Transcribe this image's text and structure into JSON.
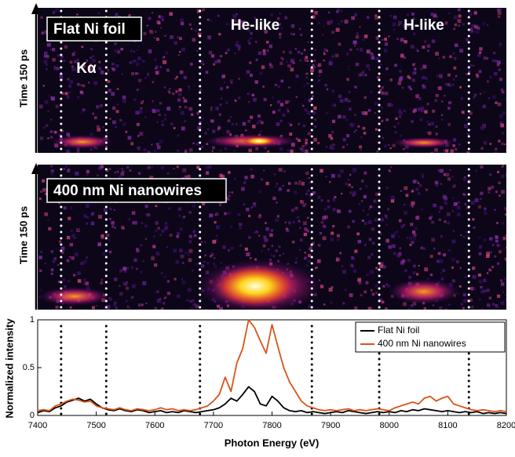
{
  "panels": [
    {
      "label": "Flat Ni foil",
      "y_label": "Time 150 ps",
      "annotations": [
        "Kα",
        "He-like",
        "H-like"
      ]
    },
    {
      "label": "400 nm Ni nanowires",
      "y_label": "Time 150 ps"
    }
  ],
  "chart_data": {
    "type": "line",
    "xlabel": "Photon Energy (eV)",
    "ylabel": "Normalized intensity",
    "x": [
      7400,
      7410,
      7420,
      7430,
      7440,
      7450,
      7460,
      7470,
      7480,
      7490,
      7500,
      7510,
      7520,
      7530,
      7540,
      7550,
      7560,
      7570,
      7580,
      7590,
      7600,
      7610,
      7620,
      7630,
      7640,
      7650,
      7660,
      7670,
      7680,
      7690,
      7700,
      7710,
      7720,
      7730,
      7740,
      7750,
      7760,
      7770,
      7780,
      7790,
      7800,
      7810,
      7820,
      7830,
      7840,
      7850,
      7860,
      7870,
      7880,
      7890,
      7900,
      7910,
      7920,
      7930,
      7940,
      7950,
      7960,
      7970,
      7980,
      7990,
      8000,
      8010,
      8020,
      8030,
      8040,
      8050,
      8060,
      8070,
      8080,
      8090,
      8100,
      8110,
      8120,
      8130,
      8140,
      8150,
      8160,
      8170,
      8180,
      8190,
      8200
    ],
    "series": [
      {
        "name": "Flat Ni foil",
        "color": "#000000",
        "values": [
          0.03,
          0.05,
          0.04,
          0.08,
          0.1,
          0.14,
          0.16,
          0.18,
          0.15,
          0.17,
          0.12,
          0.08,
          0.06,
          0.05,
          0.07,
          0.05,
          0.04,
          0.06,
          0.05,
          0.03,
          0.04,
          0.05,
          0.03,
          0.04,
          0.03,
          0.05,
          0.04,
          0.03,
          0.04,
          0.05,
          0.06,
          0.08,
          0.12,
          0.18,
          0.15,
          0.22,
          0.3,
          0.25,
          0.12,
          0.1,
          0.2,
          0.15,
          0.08,
          0.05,
          0.04,
          0.05,
          0.03,
          0.04,
          0.03,
          0.02,
          0.03,
          0.04,
          0.03,
          0.05,
          0.04,
          0.03,
          0.02,
          0.03,
          0.04,
          0.03,
          0.04,
          0.03,
          0.05,
          0.04,
          0.06,
          0.05,
          0.07,
          0.06,
          0.05,
          0.04,
          0.05,
          0.04,
          0.03,
          0.04,
          0.03,
          0.04,
          0.02,
          0.03,
          0.02,
          0.03,
          0.02
        ]
      },
      {
        "name": "400 nm Ni nanowires",
        "color": "#d95319",
        "values": [
          0.05,
          0.06,
          0.05,
          0.1,
          0.12,
          0.15,
          0.17,
          0.16,
          0.14,
          0.15,
          0.1,
          0.08,
          0.07,
          0.06,
          0.08,
          0.06,
          0.05,
          0.07,
          0.06,
          0.05,
          0.06,
          0.08,
          0.06,
          0.07,
          0.05,
          0.06,
          0.05,
          0.06,
          0.08,
          0.1,
          0.15,
          0.22,
          0.4,
          0.25,
          0.55,
          0.7,
          1.0,
          0.92,
          0.78,
          0.65,
          0.95,
          0.72,
          0.5,
          0.35,
          0.25,
          0.15,
          0.1,
          0.08,
          0.06,
          0.05,
          0.06,
          0.05,
          0.06,
          0.07,
          0.05,
          0.06,
          0.05,
          0.06,
          0.07,
          0.06,
          0.05,
          0.08,
          0.1,
          0.12,
          0.14,
          0.12,
          0.18,
          0.2,
          0.15,
          0.18,
          0.2,
          0.12,
          0.1,
          0.08,
          0.06,
          0.05,
          0.06,
          0.05,
          0.04,
          0.05,
          0.04
        ]
      }
    ],
    "dotted_lines": [
      7440,
      7517,
      7677,
      7868,
      7983,
      8136
    ],
    "xlim": [
      7400,
      8200
    ],
    "xticks": [
      7400,
      7500,
      7600,
      7700,
      7800,
      7900,
      8000,
      8100,
      8200
    ],
    "ylim": [
      0,
      1
    ],
    "yticks": [
      0,
      0.5,
      1
    ],
    "legend": "upper right"
  }
}
